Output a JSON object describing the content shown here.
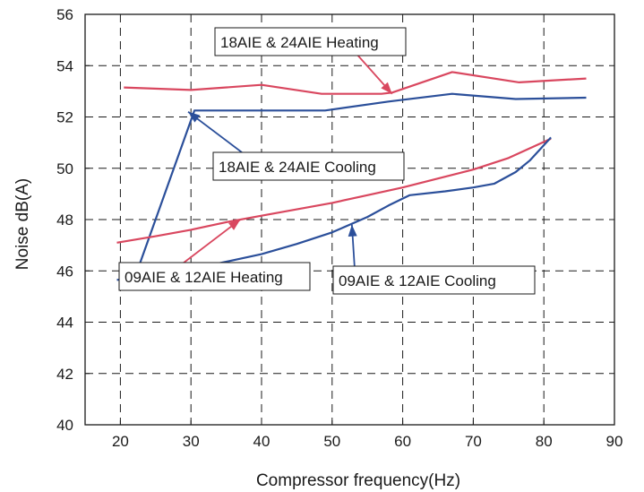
{
  "chart_data": {
    "type": "line",
    "title": "",
    "xlabel": "Compressor frequency(Hz)",
    "ylabel": "Noise dB(A)",
    "xlim": [
      15,
      90
    ],
    "ylim": [
      40,
      56
    ],
    "xticks": [
      20,
      30,
      40,
      50,
      60,
      70,
      80,
      90
    ],
    "yticks": [
      40,
      42,
      44,
      46,
      48,
      50,
      52,
      54,
      56
    ],
    "grid": "dashed",
    "series": [
      {
        "name": "18AIE & 24AIE Heating",
        "color": "#d9475f",
        "x": [
          20.5,
          30,
          40,
          48.5,
          57,
          58.5,
          67,
          76.5,
          86
        ],
        "y": [
          53.15,
          53.05,
          53.25,
          52.9,
          52.9,
          52.95,
          53.75,
          53.35,
          53.5
        ]
      },
      {
        "name": "18AIE & 24AIE Cooling",
        "color": "#2b4f9a",
        "x": [
          19.5,
          22,
          30.5,
          49,
          58,
          67,
          76,
          86
        ],
        "y": [
          45.65,
          45.7,
          52.25,
          52.25,
          52.6,
          52.9,
          52.7,
          52.75
        ]
      },
      {
        "name": "09AIE & 12AIE Heating",
        "color": "#d9475f",
        "x": [
          19.5,
          25,
          30,
          35,
          40,
          45,
          50,
          55,
          60,
          65,
          70,
          75,
          81
        ],
        "y": [
          47.1,
          47.35,
          47.6,
          47.9,
          48.15,
          48.4,
          48.65,
          48.95,
          49.25,
          49.6,
          49.95,
          50.4,
          51.15
        ]
      },
      {
        "name": "09AIE & 12AIE Cooling",
        "color": "#2b4f9a",
        "x": [
          34,
          40,
          45,
          50,
          55,
          58,
          61,
          66,
          70,
          73,
          76,
          78,
          81
        ],
        "y": [
          46.3,
          46.65,
          47.05,
          47.5,
          48.1,
          48.55,
          48.95,
          49.1,
          49.25,
          49.4,
          49.85,
          50.3,
          51.2
        ]
      }
    ],
    "annotations": [
      {
        "text": "18AIE & 24AIE Heating",
        "series": 0,
        "arrow_to": [
          58.5,
          52.9
        ]
      },
      {
        "text": "18AIE & 24AIE Cooling",
        "series": 1,
        "arrow_to": [
          29.6,
          52.2
        ]
      },
      {
        "text": "09AIE & 12AIE Heating",
        "series": 2,
        "arrow_to": [
          37.0,
          48.0
        ]
      },
      {
        "text": "09AIE & 12AIE Cooling",
        "series": 3,
        "arrow_to": [
          52.8,
          47.8
        ]
      }
    ]
  }
}
